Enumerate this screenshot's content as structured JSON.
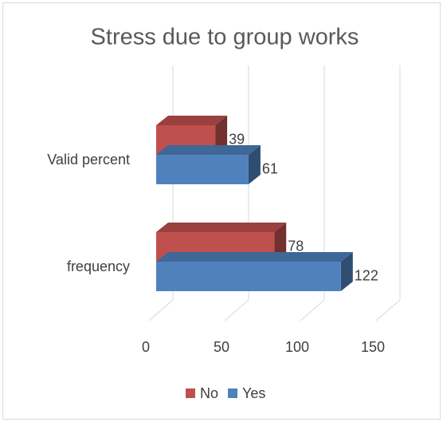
{
  "chart_data": {
    "type": "bar3d_horizontal",
    "title": "Stress due to group works",
    "categories": [
      "frequency",
      "Valid percent"
    ],
    "series": [
      {
        "name": "No",
        "color": "#c0504d",
        "values": [
          78,
          39
        ]
      },
      {
        "name": "Yes",
        "color": "#4f81bd",
        "values": [
          122,
          61
        ]
      }
    ],
    "xlim": [
      0,
      150
    ],
    "xticks": [
      0,
      50,
      100,
      150
    ],
    "grid": true,
    "legend": "bottom"
  }
}
